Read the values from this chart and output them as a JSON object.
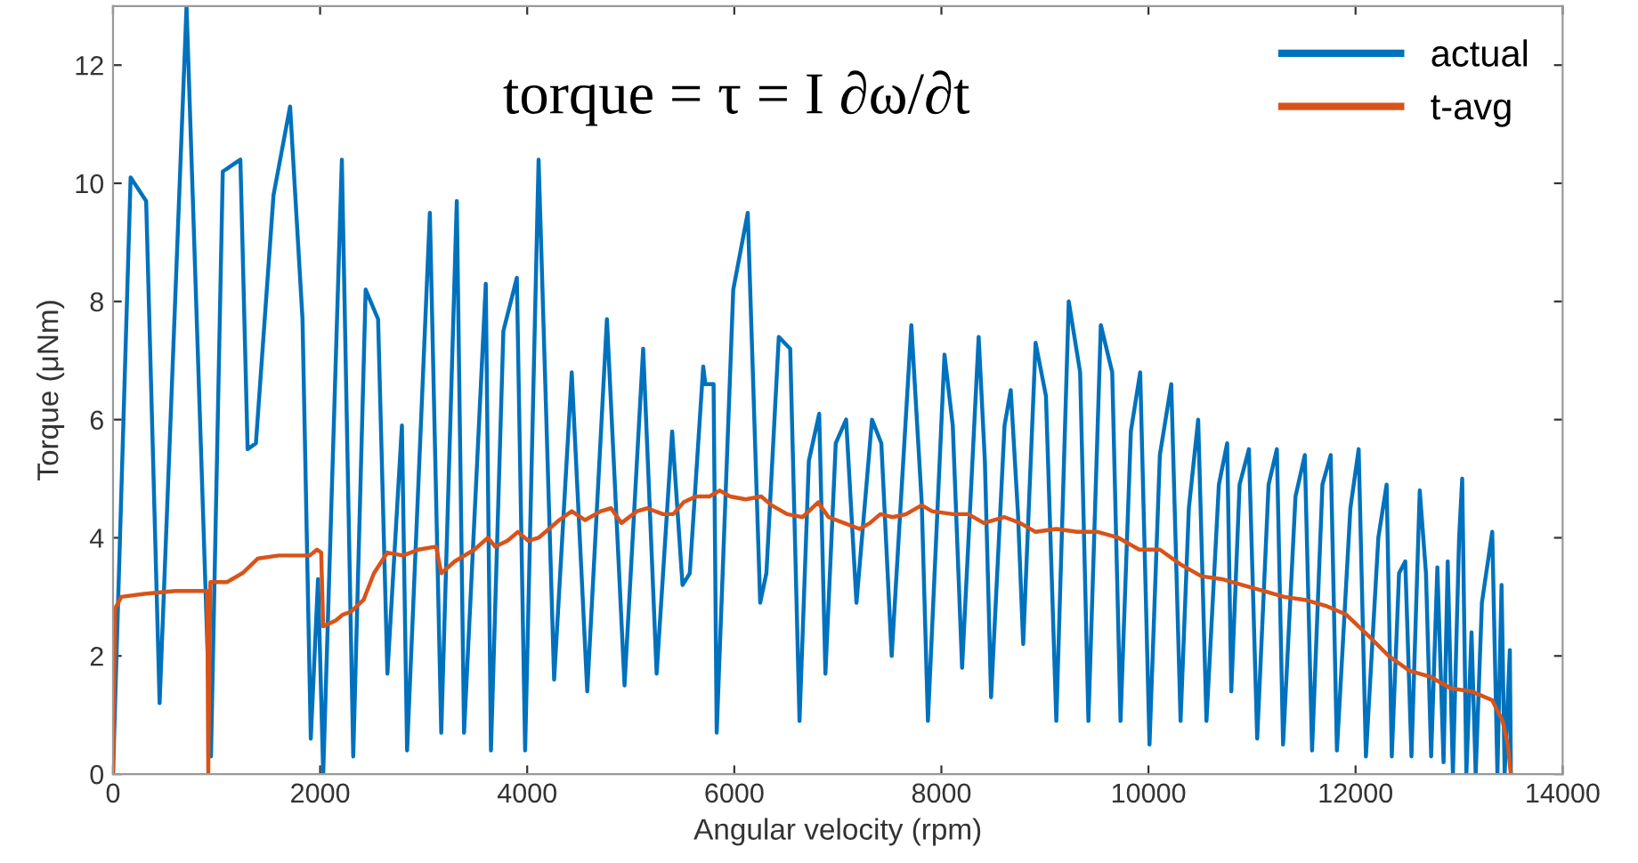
{
  "chart_data": {
    "type": "line",
    "xlabel": "Angular velocity (rpm)",
    "ylabel": "Torque (μNm)",
    "annotations": [
      "torque = τ = I ∂ω/∂t"
    ],
    "xlim": [
      0,
      14000
    ],
    "ylim": [
      0,
      13
    ],
    "xticks": [
      0,
      2000,
      4000,
      6000,
      8000,
      10000,
      12000,
      14000
    ],
    "yticks": [
      0,
      2,
      4,
      6,
      8,
      10,
      12
    ],
    "grid": false,
    "legend": "top right",
    "marker": "none",
    "line_style": "solid",
    "series": [
      {
        "name": "actual",
        "color": "#0072bd",
        "x": [
          0,
          170,
          320,
          450,
          710,
          946,
          1060,
          1230,
          1300,
          1380,
          1550,
          1710,
          1830,
          1910,
          1980,
          2030,
          2210,
          2320,
          2440,
          2560,
          2650,
          2790,
          2840,
          3060,
          3170,
          3320,
          3390,
          3600,
          3650,
          3770,
          3900,
          3980,
          4110,
          4260,
          4430,
          4580,
          4770,
          4940,
          5120,
          5250,
          5400,
          5500,
          5570,
          5700,
          5720,
          5800,
          5830,
          5990,
          6130,
          6250,
          6310,
          6430,
          6540,
          6630,
          6720,
          6820,
          6880,
          6980,
          7080,
          7180,
          7330,
          7420,
          7520,
          7710,
          7810,
          7870,
          8030,
          8110,
          8200,
          8360,
          8420,
          8480,
          8610,
          8670,
          8740,
          8790,
          8910,
          9010,
          9110,
          9230,
          9340,
          9420,
          9540,
          9650,
          9730,
          9830,
          9920,
          10010,
          10110,
          10220,
          10310,
          10390,
          10480,
          10560,
          10680,
          10760,
          10800,
          10880,
          10970,
          11050,
          11160,
          11240,
          11300,
          11420,
          11510,
          11580,
          11680,
          11760,
          11820,
          11950,
          12030,
          12100,
          12220,
          12300,
          12350,
          12420,
          12480,
          12540,
          12620,
          12680,
          12730,
          12790,
          12850,
          12890,
          12940,
          13000,
          13030,
          13070,
          13120,
          13160,
          13220,
          13320,
          13370,
          13410,
          13440,
          13490,
          13500
        ],
        "values": [
          0,
          10.1,
          9.7,
          1.2,
          13,
          0.3,
          10.2,
          10.4,
          5.5,
          5.6,
          9.8,
          11.3,
          7.7,
          0.6,
          3.3,
          0,
          10.4,
          0.3,
          8.2,
          7.7,
          1.7,
          5.9,
          0.4,
          9.5,
          0.7,
          9.7,
          0.7,
          8.3,
          0.4,
          7.5,
          8.4,
          0.4,
          10.4,
          1.6,
          6.8,
          1.4,
          7.7,
          1.5,
          7.2,
          1.7,
          5.8,
          3.2,
          3.4,
          6.9,
          6.6,
          6.6,
          0.7,
          8.2,
          9.5,
          2.9,
          3.4,
          7.4,
          7.2,
          0.9,
          5.3,
          6.1,
          1.7,
          5.6,
          6.0,
          2.9,
          6.0,
          5.6,
          2.0,
          7.6,
          4.6,
          0.9,
          7.1,
          5.9,
          1.8,
          7.4,
          5.3,
          1.3,
          5.9,
          6.5,
          4.4,
          2.2,
          7.3,
          6.4,
          0.9,
          8.0,
          6.8,
          0.9,
          7.6,
          6.8,
          0.9,
          5.8,
          6.8,
          0.5,
          5.4,
          6.6,
          0.9,
          4.5,
          6.0,
          0.9,
          4.9,
          5.6,
          1.4,
          4.9,
          5.5,
          0.6,
          4.9,
          5.5,
          0.5,
          4.7,
          5.4,
          0.4,
          4.9,
          5.4,
          0.4,
          4.5,
          5.5,
          0.3,
          4.0,
          4.9,
          0.3,
          3.4,
          3.6,
          0.3,
          4.8,
          3.4,
          0.3,
          3.5,
          0.2,
          3.6,
          0,
          4.0,
          5.0,
          0,
          2.4,
          0,
          2.9,
          4.1,
          0,
          3.2,
          0,
          2.1,
          0
        ]
      },
      {
        "name": "t-avg",
        "color": "#d95319",
        "x": [
          0,
          20,
          80,
          300,
          600,
          910,
          920,
          940,
          1100,
          1250,
          1400,
          1600,
          1900,
          1970,
          2010,
          2030,
          2150,
          2220,
          2300,
          2420,
          2520,
          2650,
          2800,
          2950,
          3120,
          3170,
          3300,
          3490,
          3620,
          3690,
          3810,
          3910,
          4010,
          4110,
          4210,
          4310,
          4430,
          4560,
          4710,
          4810,
          4910,
          5060,
          5160,
          5310,
          5410,
          5510,
          5630,
          5760,
          5860,
          5960,
          6110,
          6260,
          6360,
          6510,
          6660,
          6810,
          6910,
          7060,
          7210,
          7310,
          7410,
          7530,
          7660,
          7810,
          7910,
          8110,
          8260,
          8410,
          8610,
          8760,
          8910,
          9110,
          9310,
          9510,
          9710,
          9910,
          10110,
          10310,
          10510,
          10710,
          10910,
          11110,
          11310,
          11510,
          11710,
          11910,
          12120,
          12320,
          12520,
          12720,
          12920,
          13120,
          13320,
          13420,
          13470,
          13500
        ],
        "values": [
          0,
          2.8,
          3.0,
          3.05,
          3.1,
          3.1,
          0,
          3.25,
          3.25,
          3.4,
          3.65,
          3.7,
          3.7,
          3.8,
          3.75,
          2.5,
          2.6,
          2.7,
          2.75,
          2.95,
          3.4,
          3.75,
          3.7,
          3.8,
          3.85,
          3.4,
          3.6,
          3.8,
          4.0,
          3.85,
          3.95,
          4.1,
          3.95,
          4.0,
          4.15,
          4.3,
          4.45,
          4.3,
          4.45,
          4.5,
          4.25,
          4.45,
          4.5,
          4.4,
          4.4,
          4.6,
          4.7,
          4.7,
          4.8,
          4.7,
          4.65,
          4.7,
          4.55,
          4.4,
          4.35,
          4.6,
          4.35,
          4.25,
          4.15,
          4.25,
          4.4,
          4.35,
          4.4,
          4.55,
          4.45,
          4.4,
          4.4,
          4.25,
          4.35,
          4.25,
          4.1,
          4.15,
          4.1,
          4.1,
          4.0,
          3.8,
          3.8,
          3.55,
          3.35,
          3.3,
          3.2,
          3.1,
          3.0,
          2.95,
          2.85,
          2.7,
          2.35,
          2.0,
          1.75,
          1.65,
          1.45,
          1.4,
          1.25,
          0.9,
          0.5,
          0
        ]
      }
    ]
  }
}
